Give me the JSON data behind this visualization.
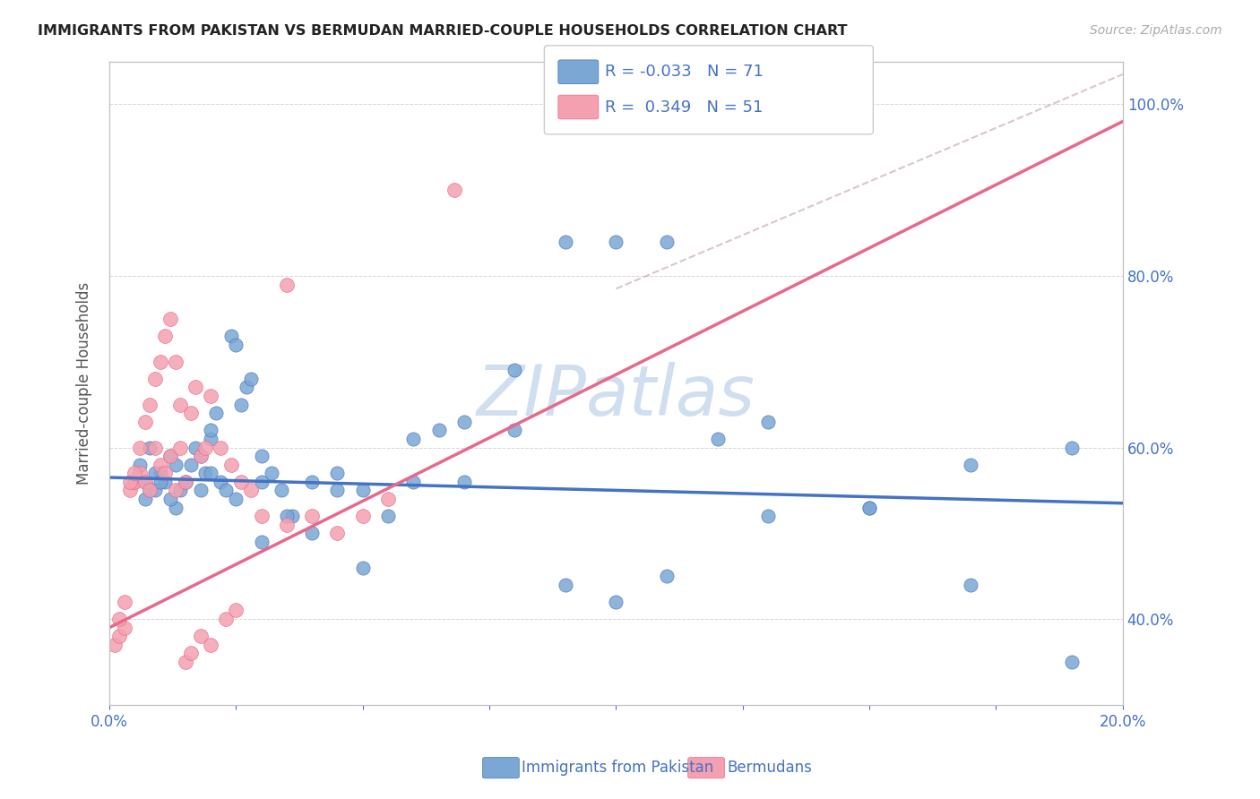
{
  "title": "IMMIGRANTS FROM PAKISTAN VS BERMUDAN MARRIED-COUPLE HOUSEHOLDS CORRELATION CHART",
  "source": "Source: ZipAtlas.com",
  "ylabel": "Married-couple Households",
  "legend1_label": "Immigrants from Pakistan",
  "legend2_label": "Bermudans",
  "R1": "-0.033",
  "N1": "71",
  "R2": "0.349",
  "N2": "51",
  "color_blue": "#7ba7d4",
  "color_pink": "#f4a0b0",
  "color_blue_dark": "#4472c4",
  "color_pink_dark": "#e8688a",
  "color_text_blue": "#4472c4",
  "color_axis": "#c0c0c0",
  "watermark_color": "#d0dff0",
  "background": "#ffffff",
  "xlim": [
    0.0,
    0.2
  ],
  "ylim": [
    0.3,
    1.05
  ],
  "blue_scatter_x": [
    0.005,
    0.006,
    0.007,
    0.008,
    0.009,
    0.01,
    0.011,
    0.012,
    0.013,
    0.014,
    0.015,
    0.016,
    0.017,
    0.018,
    0.019,
    0.02,
    0.021,
    0.022,
    0.023,
    0.024,
    0.025,
    0.026,
    0.027,
    0.028,
    0.03,
    0.032,
    0.034,
    0.036,
    0.04,
    0.045,
    0.05,
    0.055,
    0.06,
    0.065,
    0.07,
    0.08,
    0.09,
    0.1,
    0.11,
    0.12,
    0.13,
    0.15,
    0.17,
    0.19,
    0.007,
    0.008,
    0.009,
    0.01,
    0.012,
    0.013,
    0.015,
    0.018,
    0.02,
    0.025,
    0.03,
    0.035,
    0.04,
    0.045,
    0.05,
    0.06,
    0.07,
    0.08,
    0.09,
    0.1,
    0.11,
    0.13,
    0.15,
    0.17,
    0.19,
    0.02,
    0.03
  ],
  "blue_scatter_y": [
    0.56,
    0.58,
    0.54,
    0.6,
    0.55,
    0.57,
    0.56,
    0.59,
    0.53,
    0.55,
    0.56,
    0.58,
    0.6,
    0.59,
    0.57,
    0.61,
    0.64,
    0.56,
    0.55,
    0.73,
    0.72,
    0.65,
    0.67,
    0.68,
    0.56,
    0.57,
    0.55,
    0.52,
    0.56,
    0.57,
    0.55,
    0.52,
    0.61,
    0.62,
    0.56,
    0.62,
    0.44,
    0.42,
    0.45,
    0.61,
    0.52,
    0.53,
    0.44,
    0.35,
    0.56,
    0.55,
    0.57,
    0.56,
    0.54,
    0.58,
    0.56,
    0.55,
    0.57,
    0.54,
    0.49,
    0.52,
    0.5,
    0.55,
    0.46,
    0.56,
    0.63,
    0.69,
    0.84,
    0.84,
    0.84,
    0.63,
    0.53,
    0.58,
    0.6,
    0.62,
    0.59
  ],
  "pink_scatter_x": [
    0.001,
    0.002,
    0.003,
    0.004,
    0.005,
    0.006,
    0.007,
    0.008,
    0.009,
    0.01,
    0.011,
    0.012,
    0.013,
    0.014,
    0.015,
    0.016,
    0.017,
    0.018,
    0.019,
    0.02,
    0.022,
    0.024,
    0.026,
    0.028,
    0.03,
    0.035,
    0.04,
    0.045,
    0.05,
    0.055,
    0.002,
    0.003,
    0.004,
    0.005,
    0.006,
    0.007,
    0.008,
    0.009,
    0.01,
    0.011,
    0.012,
    0.013,
    0.014,
    0.015,
    0.016,
    0.018,
    0.02,
    0.023,
    0.025,
    0.035,
    0.068
  ],
  "pink_scatter_y": [
    0.37,
    0.38,
    0.39,
    0.55,
    0.56,
    0.57,
    0.56,
    0.55,
    0.6,
    0.58,
    0.57,
    0.59,
    0.55,
    0.6,
    0.56,
    0.64,
    0.67,
    0.59,
    0.6,
    0.66,
    0.6,
    0.58,
    0.56,
    0.55,
    0.52,
    0.51,
    0.52,
    0.5,
    0.52,
    0.54,
    0.4,
    0.42,
    0.56,
    0.57,
    0.6,
    0.63,
    0.65,
    0.68,
    0.7,
    0.73,
    0.75,
    0.7,
    0.65,
    0.35,
    0.36,
    0.38,
    0.37,
    0.4,
    0.41,
    0.79,
    0.9
  ],
  "blue_line_x": [
    0.0,
    0.2
  ],
  "blue_line_y": [
    0.565,
    0.535
  ],
  "pink_line_x": [
    0.0,
    0.2
  ],
  "pink_line_y": [
    0.39,
    0.98
  ],
  "dashed_line_x": [
    0.1,
    0.2
  ],
  "dashed_line_y": [
    0.785,
    1.035
  ]
}
